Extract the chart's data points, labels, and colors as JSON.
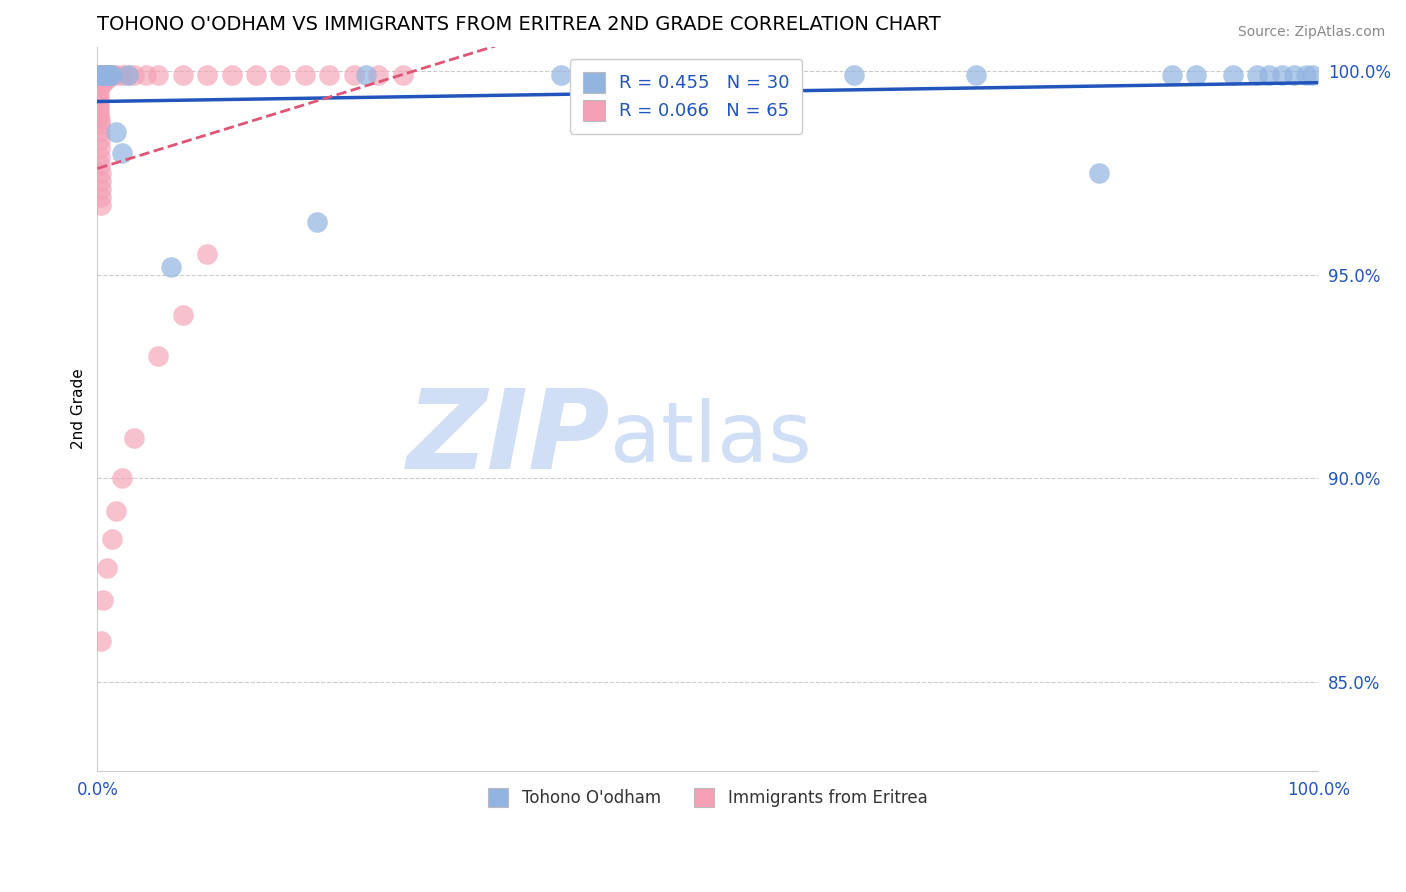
{
  "title": "TOHONO O'ODHAM VS IMMIGRANTS FROM ERITREA 2ND GRADE CORRELATION CHART",
  "source": "Source: ZipAtlas.com",
  "ylabel": "2nd Grade",
  "x_min": 0.0,
  "x_max": 1.0,
  "y_min": 0.828,
  "y_max": 1.006,
  "yticks": [
    0.85,
    0.9,
    0.95,
    1.0
  ],
  "ytick_labels": [
    "85.0%",
    "90.0%",
    "95.0%",
    "100.0%"
  ],
  "xticks": [
    0.0,
    0.2,
    0.4,
    0.6,
    0.8,
    1.0
  ],
  "xtick_labels": [
    "0.0%",
    "",
    "",
    "",
    "",
    "100.0%"
  ],
  "legend_r1": "R = 0.455   N = 30",
  "legend_r2": "R = 0.066   N = 65",
  "blue_color": "#92b4e0",
  "pink_color": "#f4a0b5",
  "blue_line_color": "#2255bb",
  "pink_line_color": "#e05575",
  "watermark_zip": "ZIP",
  "watermark_atlas": "atlas",
  "watermark_color": "#d0dff5",
  "legend_label_blue": "Tohono O'odham",
  "legend_label_pink": "Immigrants from Eritrea",
  "blue_scatter_x": [
    0.002,
    0.003,
    0.004,
    0.005,
    0.006,
    0.007,
    0.007,
    0.008,
    0.009,
    0.01,
    0.012,
    0.015,
    0.02,
    0.025,
    0.06,
    0.18,
    0.22,
    0.38,
    0.62,
    0.72,
    0.82,
    0.88,
    0.9,
    0.93,
    0.95,
    0.96,
    0.97,
    0.98,
    0.99,
    0.995
  ],
  "blue_scatter_y": [
    0.999,
    0.999,
    0.999,
    0.999,
    0.999,
    0.999,
    0.999,
    0.999,
    0.999,
    0.999,
    0.999,
    0.985,
    0.98,
    0.999,
    0.952,
    0.963,
    0.999,
    0.999,
    0.999,
    0.999,
    0.975,
    0.999,
    0.999,
    0.999,
    0.999,
    0.999,
    0.999,
    0.999,
    0.999,
    0.999
  ],
  "pink_scatter_x": [
    0.001,
    0.001,
    0.001,
    0.001,
    0.001,
    0.001,
    0.001,
    0.001,
    0.001,
    0.001,
    0.001,
    0.001,
    0.001,
    0.002,
    0.002,
    0.002,
    0.002,
    0.002,
    0.002,
    0.002,
    0.003,
    0.003,
    0.003,
    0.003,
    0.003,
    0.004,
    0.004,
    0.004,
    0.005,
    0.005,
    0.005,
    0.006,
    0.006,
    0.007,
    0.008,
    0.008,
    0.009,
    0.01,
    0.012,
    0.015,
    0.02,
    0.025,
    0.03,
    0.04,
    0.05,
    0.07,
    0.09,
    0.11,
    0.13,
    0.15,
    0.17,
    0.19,
    0.21,
    0.23,
    0.25,
    0.09,
    0.07,
    0.05,
    0.03,
    0.02,
    0.015,
    0.012,
    0.008,
    0.005,
    0.003
  ],
  "pink_scatter_y": [
    0.999,
    0.999,
    0.999,
    0.998,
    0.997,
    0.996,
    0.995,
    0.994,
    0.993,
    0.992,
    0.991,
    0.99,
    0.989,
    0.988,
    0.987,
    0.985,
    0.983,
    0.981,
    0.979,
    0.977,
    0.975,
    0.973,
    0.971,
    0.969,
    0.967,
    0.999,
    0.998,
    0.997,
    0.999,
    0.998,
    0.997,
    0.999,
    0.998,
    0.999,
    0.999,
    0.998,
    0.999,
    0.999,
    0.999,
    0.999,
    0.999,
    0.999,
    0.999,
    0.999,
    0.999,
    0.999,
    0.999,
    0.999,
    0.999,
    0.999,
    0.999,
    0.999,
    0.999,
    0.999,
    0.999,
    0.955,
    0.94,
    0.93,
    0.91,
    0.9,
    0.892,
    0.885,
    0.878,
    0.87,
    0.86
  ]
}
